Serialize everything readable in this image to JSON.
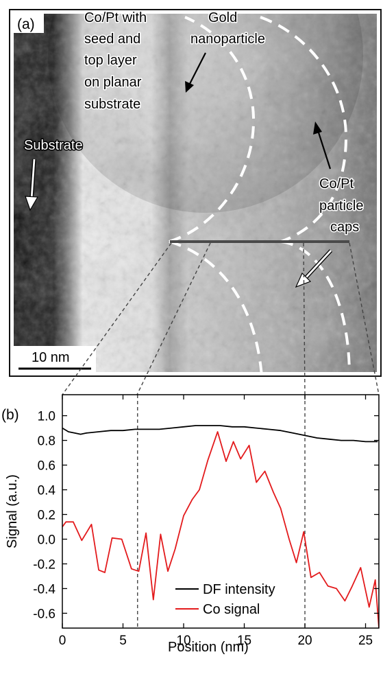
{
  "panel_a": {
    "panel_label": "(a)",
    "annotations": {
      "copt_film": [
        "Co/Pt with",
        "seed and",
        "top layer",
        "on planar",
        "substrate"
      ],
      "gold": [
        "Gold",
        "nanoparticle"
      ],
      "substrate": "Substrate",
      "caps": [
        "Co/Pt",
        "particle",
        "caps"
      ]
    },
    "scale_bar_label": "10 nm"
  },
  "panel_b": {
    "panel_label": "(b)",
    "legend_position": "bottom-center"
  },
  "chart_data": {
    "type": "line",
    "xlabel": "Position (nm)",
    "ylabel": "Signal (a.u.)",
    "xlim": [
      0,
      26.1
    ],
    "ylim": [
      -0.72,
      1.17
    ],
    "xticks": [
      0,
      5,
      10,
      15,
      20,
      25
    ],
    "yticks": [
      -0.6,
      -0.4,
      -0.2,
      0.0,
      0.2,
      0.4,
      0.6,
      0.8,
      1.0
    ],
    "ytick_labels": [
      "-0.6",
      "-0.4",
      "-0.2",
      "0.0",
      "0.2",
      "0.4",
      "0.6",
      "0.8",
      "1.0"
    ],
    "grid": false,
    "vlines": [
      6.2,
      20.0
    ],
    "series": [
      {
        "name": "DF intensity",
        "color": "#000000",
        "x": [
          0,
          0.5,
          1.0,
          1.5,
          2.0,
          3.0,
          4.0,
          5.0,
          6.0,
          7.0,
          8.0,
          9.0,
          10.0,
          11.0,
          12.0,
          13.0,
          14.0,
          15.0,
          16.0,
          17.0,
          18.0,
          19.0,
          20.0,
          21.0,
          22.0,
          23.0,
          24.0,
          25.0,
          26.0
        ],
        "y": [
          0.9,
          0.87,
          0.86,
          0.85,
          0.86,
          0.87,
          0.88,
          0.88,
          0.89,
          0.89,
          0.89,
          0.9,
          0.91,
          0.92,
          0.92,
          0.92,
          0.91,
          0.91,
          0.9,
          0.89,
          0.88,
          0.86,
          0.84,
          0.82,
          0.81,
          0.8,
          0.8,
          0.79,
          0.79
        ]
      },
      {
        "name": "Co signal",
        "color": "#e31a1c",
        "x": [
          0,
          0.3,
          0.9,
          1.6,
          2.4,
          3.0,
          3.5,
          4.1,
          4.9,
          5.7,
          6.3,
          6.9,
          7.5,
          8.1,
          8.7,
          9.3,
          10.0,
          10.7,
          11.3,
          12.0,
          12.8,
          13.5,
          14.1,
          14.7,
          15.4,
          16.0,
          16.7,
          17.4,
          18.0,
          18.7,
          19.3,
          19.9,
          20.5,
          21.2,
          21.9,
          22.6,
          23.3,
          23.9,
          24.6,
          25.3,
          25.8,
          26.1
        ],
        "y": [
          0.1,
          0.14,
          0.14,
          -0.01,
          0.12,
          -0.25,
          -0.27,
          0.01,
          0.0,
          -0.24,
          -0.26,
          0.05,
          -0.49,
          0.04,
          -0.26,
          -0.08,
          0.19,
          0.32,
          0.4,
          0.64,
          0.87,
          0.63,
          0.79,
          0.65,
          0.76,
          0.46,
          0.55,
          0.38,
          0.25,
          0.0,
          -0.19,
          0.06,
          -0.31,
          -0.27,
          -0.38,
          -0.4,
          -0.5,
          -0.38,
          -0.23,
          -0.55,
          -0.33,
          -0.72
        ]
      }
    ]
  }
}
